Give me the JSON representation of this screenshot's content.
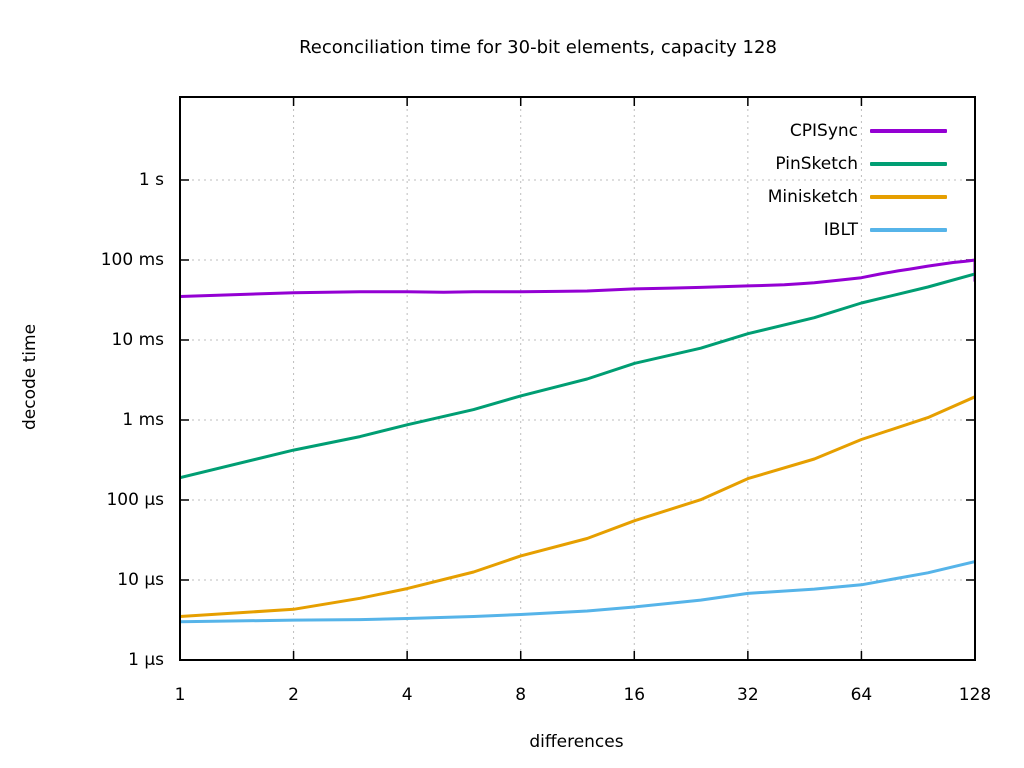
{
  "title": "Reconciliation time for 30-bit elements, capacity 128",
  "chart_data": {
    "type": "line",
    "title": "Reconciliation time for 30-bit elements, capacity 128",
    "xlabel": "differences",
    "ylabel": "decode time",
    "x_scale": "log2",
    "y_scale": "log10",
    "grid": true,
    "legend_position": "top-right",
    "x_ticks": [
      1,
      2,
      4,
      8,
      16,
      32,
      64,
      128
    ],
    "x_range": [
      1,
      128
    ],
    "y_ticks": [
      {
        "label": "1 s",
        "us": 1000000
      },
      {
        "label": "100 ms",
        "us": 100000
      },
      {
        "label": "10 ms",
        "us": 10000
      },
      {
        "label": "1 ms",
        "us": 1000
      },
      {
        "label": "100 µs",
        "us": 100
      },
      {
        "label": "10 µs",
        "us": 10
      },
      {
        "label": "1 µs",
        "us": 1
      }
    ],
    "y_range_us": [
      1,
      11000000
    ],
    "series": [
      {
        "name": "CPISync",
        "color": "#9400d3",
        "points": [
          [
            1,
            35000
          ],
          [
            2,
            39000
          ],
          [
            3,
            40000
          ],
          [
            4,
            40000
          ],
          [
            5,
            39500
          ],
          [
            6,
            40000
          ],
          [
            8,
            40000
          ],
          [
            10,
            40500
          ],
          [
            12,
            41000
          ],
          [
            16,
            43500
          ],
          [
            20,
            44500
          ],
          [
            24,
            45500
          ],
          [
            32,
            47500
          ],
          [
            40,
            49000
          ],
          [
            44,
            50500
          ],
          [
            48,
            52000
          ],
          [
            56,
            56000
          ],
          [
            64,
            60000
          ],
          [
            72,
            67000
          ],
          [
            80,
            73000
          ],
          [
            86,
            77000
          ],
          [
            96,
            84000
          ],
          [
            112,
            93000
          ],
          [
            120,
            96000
          ],
          [
            124,
            98000
          ],
          [
            128,
            100000
          ],
          [
            128,
            55000
          ]
        ]
      },
      {
        "name": "PinSketch",
        "color": "#009e73",
        "points": [
          [
            1,
            190
          ],
          [
            2,
            420
          ],
          [
            3,
            620
          ],
          [
            4,
            870
          ],
          [
            6,
            1350
          ],
          [
            8,
            2000
          ],
          [
            12,
            3250
          ],
          [
            16,
            5100
          ],
          [
            24,
            7900
          ],
          [
            32,
            12000
          ],
          [
            48,
            19000
          ],
          [
            64,
            29000
          ],
          [
            96,
            46000
          ],
          [
            128,
            67000
          ]
        ]
      },
      {
        "name": "Minisketch",
        "color": "#e69f00",
        "points": [
          [
            1,
            3.5
          ],
          [
            2,
            4.3
          ],
          [
            3,
            5.9
          ],
          [
            4,
            7.8
          ],
          [
            6,
            12.6
          ],
          [
            8,
            20
          ],
          [
            12,
            33
          ],
          [
            16,
            55
          ],
          [
            24,
            101
          ],
          [
            32,
            185
          ],
          [
            48,
            325
          ],
          [
            64,
            570
          ],
          [
            96,
            1070
          ],
          [
            128,
            1950
          ]
        ]
      },
      {
        "name": "IBLT",
        "color": "#56b4e9",
        "points": [
          [
            1,
            3.0
          ],
          [
            2,
            3.15
          ],
          [
            3,
            3.2
          ],
          [
            4,
            3.3
          ],
          [
            6,
            3.5
          ],
          [
            8,
            3.7
          ],
          [
            12,
            4.1
          ],
          [
            16,
            4.6
          ],
          [
            24,
            5.6
          ],
          [
            32,
            6.8
          ],
          [
            48,
            7.7
          ],
          [
            64,
            8.7
          ],
          [
            96,
            12.3
          ],
          [
            128,
            17
          ]
        ]
      }
    ]
  }
}
